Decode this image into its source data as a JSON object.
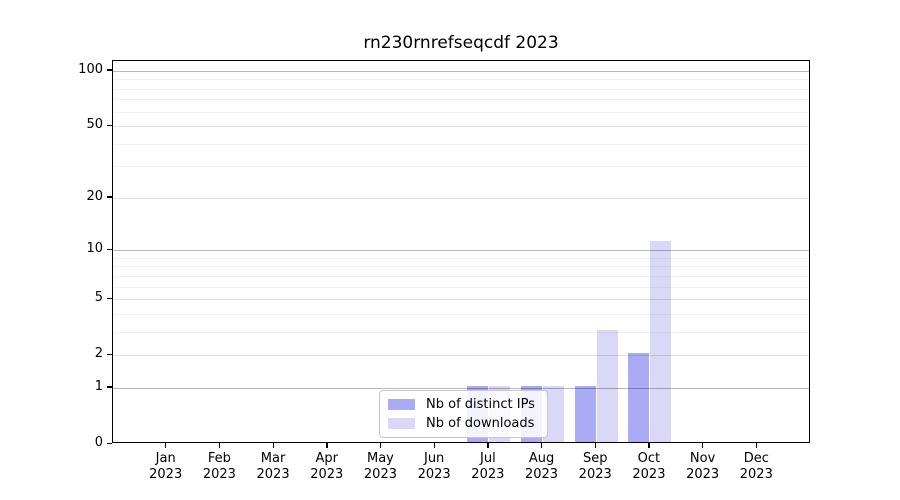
{
  "title": "rn230rnrefseqcdf 2023",
  "chart_data": {
    "type": "bar",
    "title": "rn230rnrefseqcdf 2023",
    "categories": [
      "Jan 2023",
      "Feb 2023",
      "Mar 2023",
      "Apr 2023",
      "May 2023",
      "Jun 2023",
      "Jul 2023",
      "Aug 2023",
      "Sep 2023",
      "Oct 2023",
      "Nov 2023",
      "Dec 2023"
    ],
    "series": [
      {
        "name": "Nb of distinct IPs",
        "color": "#ababf5",
        "values": [
          0,
          0,
          0,
          0,
          0,
          0,
          1,
          1,
          1,
          2,
          0,
          0
        ]
      },
      {
        "name": "Nb of downloads",
        "color": "#d9d9f7",
        "values": [
          0,
          0,
          0,
          0,
          0,
          0,
          1,
          1,
          3,
          11,
          0,
          0
        ]
      }
    ],
    "xlabel": "",
    "ylabel": "",
    "y_scale": "log1p",
    "ylim": [
      0,
      113
    ],
    "y_major_ticks": [
      100,
      50,
      20,
      10,
      5,
      2,
      1,
      0
    ],
    "y_decade_lines": [
      1,
      10,
      100
    ],
    "y_minor_gridlines": [
      3,
      4,
      6,
      7,
      8,
      9,
      30,
      40,
      60,
      70,
      80,
      90
    ],
    "grid": "horizontal, major and minor, drawn over bars",
    "legend_position": "inside, lower center"
  },
  "colors": {
    "bar_distinct_ips": "#ababf5",
    "bar_downloads": "#d9d9f7",
    "axis": "#000000",
    "grid_decade": "rgba(0,0,0,0.28)",
    "grid_major": "rgba(0,0,0,0.12)",
    "grid_minor": "rgba(0,0,0,0.055)",
    "legend_border": "#c7c7c7",
    "legend_background": "rgba(255,255,255,0.85)"
  }
}
